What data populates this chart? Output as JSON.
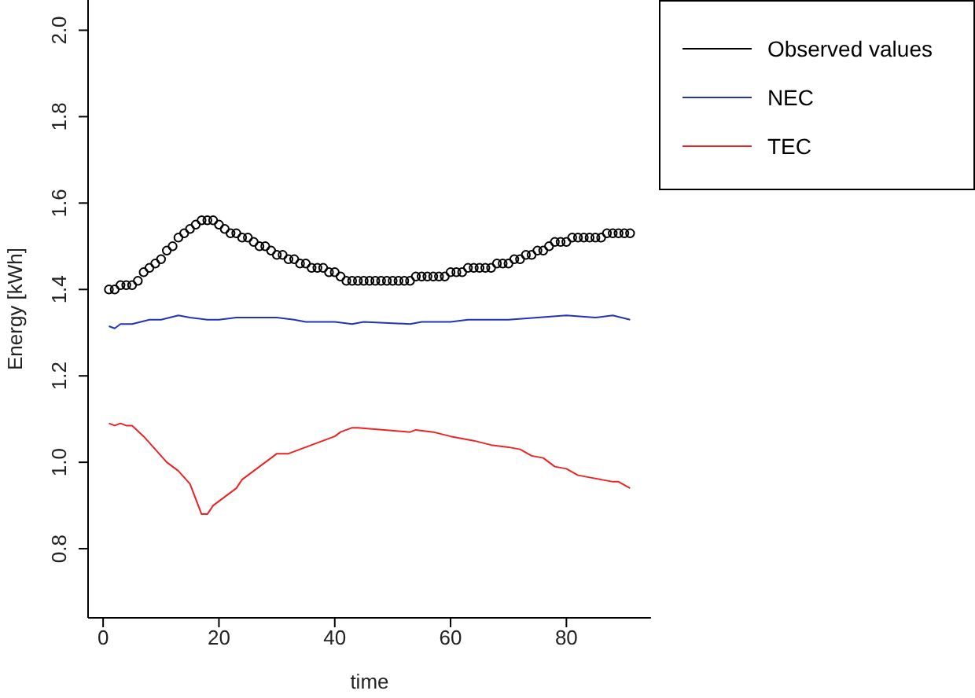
{
  "chart_data": {
    "type": "line",
    "xlabel": "time",
    "ylabel": "Energy [kWh]",
    "xlim": [
      -2.6,
      94.6
    ],
    "xticks": [
      0,
      20,
      40,
      60,
      80
    ],
    "ylim": [
      0.64,
      2.07
    ],
    "yticks": [
      {
        "value": 0.8,
        "label": "0.8"
      },
      {
        "value": 1,
        "label": "1.0"
      },
      {
        "value": 1.2,
        "label": "1.2"
      },
      {
        "value": 1.4,
        "label": "1.4"
      },
      {
        "value": 1.6,
        "label": "1.6"
      },
      {
        "value": 1.8,
        "label": "1.8"
      },
      {
        "value": 2,
        "label": "2.0"
      }
    ],
    "grid": false,
    "legend": "top right",
    "series": [
      {
        "name": "Observed values",
        "type": "scatter",
        "marker": "circle",
        "color": "#000000",
        "x": [
          1,
          2,
          3,
          4,
          5,
          6,
          7,
          8,
          9,
          10,
          11,
          12,
          13,
          14,
          15,
          16,
          17,
          18,
          19,
          20,
          21,
          22,
          23,
          24,
          25,
          26,
          27,
          28,
          29,
          30,
          31,
          32,
          33,
          34,
          35,
          36,
          37,
          38,
          39,
          40,
          41,
          42,
          43,
          44,
          45,
          46,
          47,
          48,
          49,
          50,
          51,
          52,
          53,
          54,
          55,
          56,
          57,
          58,
          59,
          60,
          61,
          62,
          63,
          64,
          65,
          66,
          67,
          68,
          69,
          70,
          71,
          72,
          73,
          74,
          75,
          76,
          77,
          78,
          79,
          80,
          81,
          82,
          83,
          84,
          85,
          86,
          87,
          88,
          89,
          90,
          91
        ],
        "values": [
          1.4,
          1.4,
          1.41,
          1.41,
          1.41,
          1.42,
          1.44,
          1.45,
          1.46,
          1.47,
          1.49,
          1.5,
          1.52,
          1.53,
          1.54,
          1.55,
          1.56,
          1.56,
          1.56,
          1.55,
          1.54,
          1.53,
          1.53,
          1.52,
          1.52,
          1.51,
          1.5,
          1.5,
          1.49,
          1.48,
          1.48,
          1.47,
          1.47,
          1.46,
          1.46,
          1.45,
          1.45,
          1.45,
          1.44,
          1.44,
          1.43,
          1.42,
          1.42,
          1.42,
          1.42,
          1.42,
          1.42,
          1.42,
          1.42,
          1.42,
          1.42,
          1.42,
          1.42,
          1.43,
          1.43,
          1.43,
          1.43,
          1.43,
          1.43,
          1.44,
          1.44,
          1.44,
          1.45,
          1.45,
          1.45,
          1.45,
          1.45,
          1.46,
          1.46,
          1.46,
          1.47,
          1.47,
          1.48,
          1.48,
          1.49,
          1.49,
          1.5,
          1.51,
          1.51,
          1.51,
          1.52,
          1.52,
          1.52,
          1.52,
          1.52,
          1.52,
          1.53,
          1.53,
          1.53,
          1.53,
          1.53
        ]
      },
      {
        "name": "NEC",
        "color": "#2233bb",
        "x": [
          1,
          2,
          3,
          5,
          8,
          10,
          13,
          15,
          18,
          20,
          23,
          30,
          33,
          35,
          40,
          43,
          45,
          53,
          55,
          60,
          63,
          70,
          75,
          80,
          85,
          88,
          91
        ],
        "values": [
          1.315,
          1.31,
          1.32,
          1.32,
          1.33,
          1.33,
          1.34,
          1.335,
          1.33,
          1.33,
          1.335,
          1.335,
          1.33,
          1.325,
          1.325,
          1.32,
          1.325,
          1.32,
          1.325,
          1.325,
          1.33,
          1.33,
          1.335,
          1.34,
          1.335,
          1.34,
          1.33
        ]
      },
      {
        "name": "TEC",
        "color": "#ee2222",
        "x": [
          1,
          2,
          3,
          4,
          5,
          7,
          9,
          11,
          13,
          15,
          17,
          18,
          19,
          21,
          23,
          24,
          27,
          30,
          32,
          34,
          36,
          38,
          40,
          41,
          43,
          44,
          53,
          54,
          57,
          60,
          62,
          64,
          67,
          70,
          72,
          74,
          76,
          78,
          80,
          82,
          84,
          86,
          88,
          89,
          91
        ],
        "values": [
          1.09,
          1.085,
          1.09,
          1.085,
          1.085,
          1.06,
          1.03,
          1.0,
          0.98,
          0.95,
          0.88,
          0.88,
          0.9,
          0.92,
          0.94,
          0.96,
          0.99,
          1.02,
          1.02,
          1.03,
          1.04,
          1.05,
          1.06,
          1.07,
          1.08,
          1.08,
          1.07,
          1.075,
          1.07,
          1.06,
          1.055,
          1.05,
          1.04,
          1.035,
          1.03,
          1.015,
          1.01,
          0.99,
          0.985,
          0.97,
          0.965,
          0.96,
          0.955,
          0.955,
          0.94
        ]
      }
    ]
  }
}
